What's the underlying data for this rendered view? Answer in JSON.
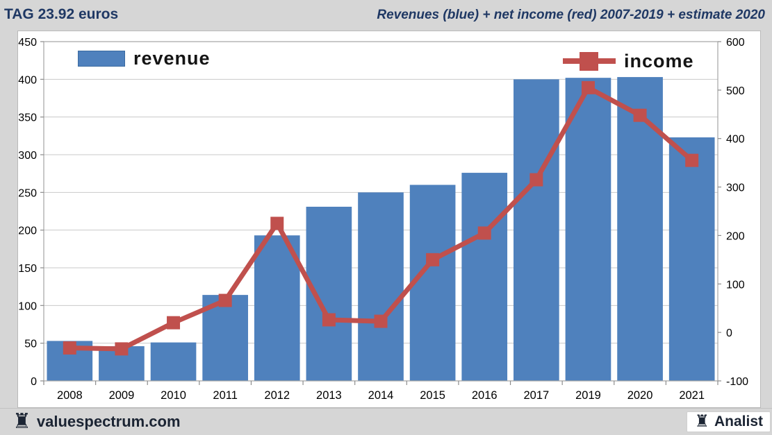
{
  "header": {
    "title_left": "TAG 23.92 euros",
    "title_right": "Revenues (blue) + net income (red) 2007-2019 + estimate 2020"
  },
  "legend": {
    "revenue_label": "revenue",
    "income_label": "income"
  },
  "footer": {
    "site": "valuespectrum.com",
    "brand": "Analist",
    "rook_icon": "♜"
  },
  "colors": {
    "bar": "#4f81bd",
    "bar_border": "#4f81bd",
    "line": "#c0504d",
    "marker": "#c0504d",
    "title": "#1f3864",
    "gridline": "#c9c9c9",
    "plot_border": "#a3a3a3",
    "axis_line": "#8c8c8c",
    "axis_text": "#000000",
    "background": "#d6d6d6",
    "chart_background": "#ffffff"
  },
  "chart_data": {
    "type": "bar",
    "subtype": "bar+line dual axis",
    "title": "Revenues (blue) + net income (red) 2007-2019 + estimate 2020",
    "categories": [
      "2008",
      "2009",
      "2010",
      "2011",
      "2012",
      "2013",
      "2014",
      "2015",
      "2016",
      "2017",
      "2019",
      "2020",
      "2021"
    ],
    "series": [
      {
        "name": "revenue",
        "type": "bar",
        "axis": "left",
        "color": "#4f81bd",
        "values": [
          53,
          46,
          51,
          114,
          193,
          231,
          250,
          260,
          276,
          400,
          402,
          403,
          323
        ]
      },
      {
        "name": "income",
        "type": "line",
        "axis": "right",
        "color": "#c0504d",
        "values": [
          -32,
          -34,
          20,
          66,
          225,
          26,
          23,
          150,
          205,
          315,
          505,
          448,
          355
        ]
      }
    ],
    "left_axis": {
      "min": 0,
      "max": 450,
      "step": 50,
      "ticks": [
        0,
        50,
        100,
        150,
        200,
        250,
        300,
        350,
        400,
        450
      ],
      "tick_labels": [
        "0",
        "50",
        "100",
        "150",
        "200",
        "250",
        "300",
        "350",
        "400",
        "450"
      ]
    },
    "right_axis": {
      "min": -100,
      "max": 600,
      "step": 100,
      "ticks": [
        -100,
        0,
        100,
        200,
        300,
        400,
        500,
        600
      ],
      "tick_labels": [
        "-100",
        "0",
        "100",
        "200",
        "300",
        "400",
        "500",
        "600"
      ]
    },
    "grid": "horizontal",
    "legend_position": "inside-top"
  }
}
